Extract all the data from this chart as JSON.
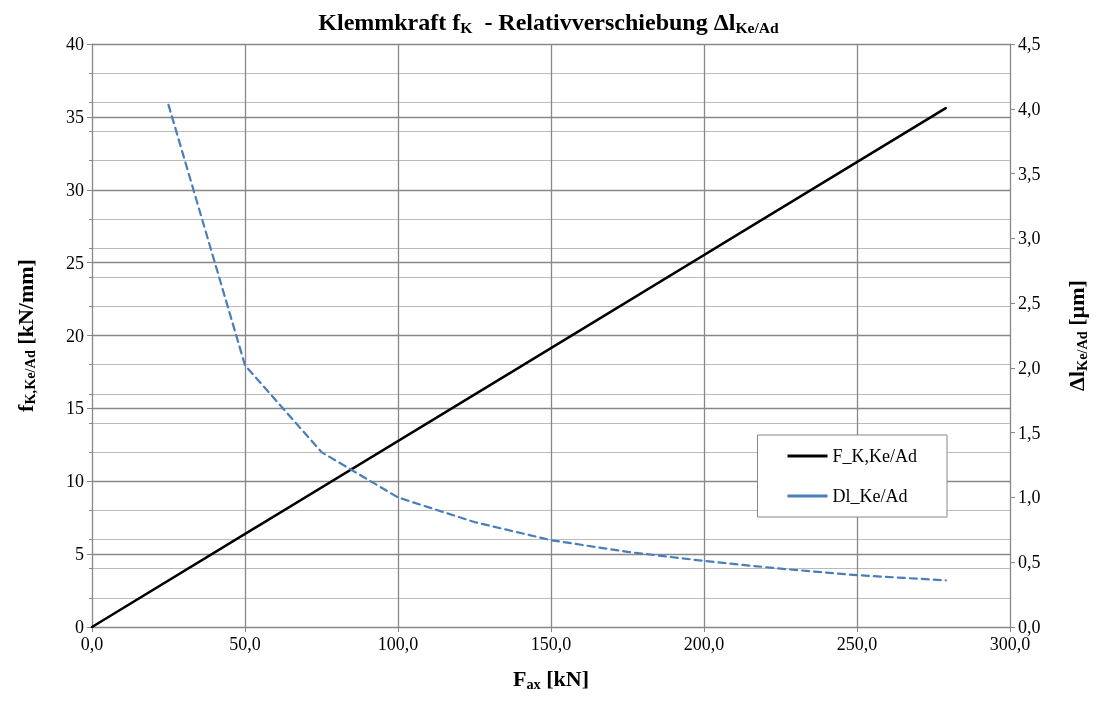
{
  "chart_data": {
    "type": "line",
    "title": "Klemmkraft f$_{K}$  - Relativverschiebung Δl$_{Ke/Ad}$",
    "xlabel": "F$_{ax}$ [kN]",
    "ylabel": "f$_{K,Ke/Ad}$ [kN/mm]",
    "y2label": "Δl$_{Ke/Ad}$ [µm]",
    "series": [
      {
        "name": "F_K,Ke/Ad",
        "color": "#000000",
        "x": [
          0,
          279
        ],
        "values": [
          0,
          35.6
        ],
        "line_style": "solid"
      },
      {
        "name": "Dl_Ke/Ad",
        "color": "#4a7ebb",
        "axis": "y2",
        "x": [
          25,
          50,
          75,
          100,
          125,
          150,
          175,
          200,
          225,
          250,
          279
        ],
        "values": [
          4.03,
          2.02,
          1.35,
          1.0,
          0.81,
          0.67,
          0.58,
          0.51,
          0.45,
          0.4,
          0.36
        ],
        "line_style": "dashed"
      }
    ],
    "xlim": [
      0,
      300
    ],
    "xticks": [
      {
        "value": 0,
        "label": "0,0"
      },
      {
        "value": 50,
        "label": "50,0"
      },
      {
        "value": 100,
        "label": "100,0"
      },
      {
        "value": 150,
        "label": "150,0"
      },
      {
        "value": 200,
        "label": "200,0"
      },
      {
        "value": 250,
        "label": "250,0"
      },
      {
        "value": 300,
        "label": "300,0"
      }
    ],
    "ylim": [
      0,
      40
    ],
    "yticks": [
      0,
      5,
      10,
      15,
      20,
      25,
      30,
      35,
      40
    ],
    "y2lim": [
      0,
      4.5
    ],
    "y2ticks": [
      {
        "value": 0,
        "label": "0,0"
      },
      {
        "value": 0.5,
        "label": "0,5"
      },
      {
        "value": 1,
        "label": "1,0"
      },
      {
        "value": 1.5,
        "label": "1,5"
      },
      {
        "value": 2,
        "label": "2,0"
      },
      {
        "value": 2.5,
        "label": "2,5"
      },
      {
        "value": 3,
        "label": "3,0"
      },
      {
        "value": 3.5,
        "label": "3,5"
      },
      {
        "value": 4,
        "label": "4,0"
      },
      {
        "value": 4.5,
        "label": "4,5"
      }
    ],
    "grid": true,
    "legend": "right",
    "marker": "none"
  }
}
